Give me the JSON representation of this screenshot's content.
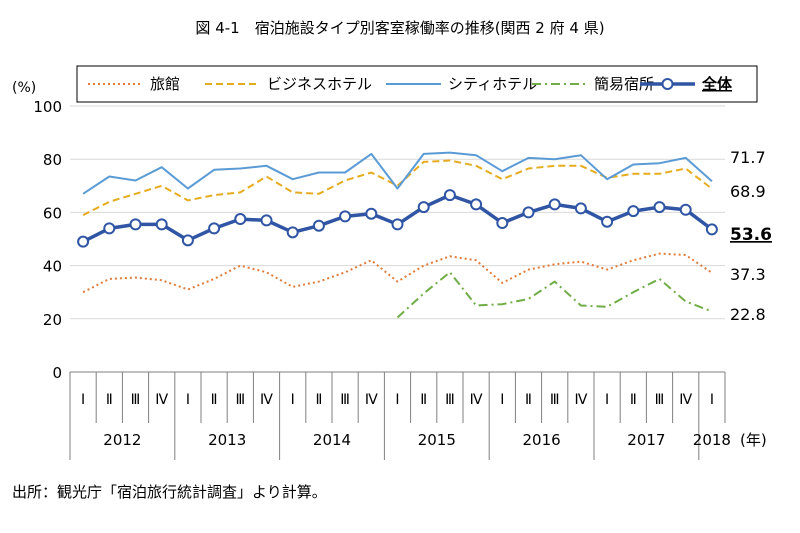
{
  "chart_data": {
    "type": "line",
    "title": "図 4-1　宿泊施設タイプ別客室稼働率の推移(関西 2 府 4 県)",
    "ylabel": "(%)",
    "year_unit": "(年)",
    "ylim": [
      0,
      100
    ],
    "yticks": [
      0,
      20,
      40,
      60,
      80,
      100
    ],
    "grid": true,
    "legend_position": "top",
    "quarters": [
      "Ⅰ",
      "Ⅱ",
      "Ⅲ",
      "Ⅳ",
      "Ⅰ",
      "Ⅱ",
      "Ⅲ",
      "Ⅳ",
      "Ⅰ",
      "Ⅱ",
      "Ⅲ",
      "Ⅳ",
      "Ⅰ",
      "Ⅱ",
      "Ⅲ",
      "Ⅳ",
      "Ⅰ",
      "Ⅱ",
      "Ⅲ",
      "Ⅳ",
      "Ⅰ",
      "Ⅱ",
      "Ⅲ",
      "Ⅳ",
      "Ⅰ"
    ],
    "years": [
      {
        "label": "2012",
        "quarters": 4
      },
      {
        "label": "2013",
        "quarters": 4
      },
      {
        "label": "2014",
        "quarters": 4
      },
      {
        "label": "2015",
        "quarters": 4
      },
      {
        "label": "2016",
        "quarters": 4
      },
      {
        "label": "2017",
        "quarters": 4
      },
      {
        "label": "2018",
        "quarters": 1
      }
    ],
    "series": [
      {
        "name": "旅館",
        "color": "#e07b39",
        "style": "dotted",
        "width": 2,
        "markers": false,
        "end_label": "37.3",
        "end_bold": false,
        "values": [
          30,
          35,
          35.5,
          34.5,
          31,
          35,
          40,
          37.5,
          32,
          34,
          37.5,
          42,
          34,
          40,
          43.5,
          42,
          33.5,
          38.5,
          40.5,
          41.5,
          38.5,
          42,
          44.5,
          44,
          37.3
        ]
      },
      {
        "name": "ビジネスホテル",
        "color": "#e6ac1f",
        "style": "dashed",
        "width": 2,
        "markers": false,
        "end_label": "68.9",
        "end_bold": false,
        "values": [
          59,
          64,
          67,
          70,
          64.5,
          66.5,
          67.5,
          73.5,
          67.5,
          67,
          72,
          75,
          70,
          79,
          79.5,
          77.5,
          72.5,
          76.5,
          77.5,
          77.5,
          73,
          74.5,
          74.5,
          76.5,
          68.9
        ]
      },
      {
        "name": "シティホテル",
        "color": "#5b9bd5",
        "style": "solid",
        "width": 2,
        "markers": false,
        "end_label": "71.7",
        "end_bold": false,
        "values": [
          67,
          73.5,
          72,
          77,
          69,
          76,
          76.5,
          77.5,
          72.5,
          75,
          75,
          82,
          69,
          82,
          82.5,
          81.5,
          75.5,
          80.5,
          80,
          81.5,
          72.5,
          78,
          78.5,
          80.5,
          71.7
        ]
      },
      {
        "name": "簡易宿所",
        "color": "#70ad47",
        "style": "dashdot",
        "width": 2,
        "markers": false,
        "end_label": "22.8",
        "end_bold": false,
        "values": [
          null,
          null,
          null,
          null,
          null,
          null,
          null,
          null,
          null,
          null,
          null,
          null,
          20.5,
          29.5,
          37.5,
          25,
          25.5,
          27.5,
          34,
          25,
          24.5,
          30,
          35,
          26.5,
          22.8
        ]
      },
      {
        "name": "全体",
        "color": "#2f55a4",
        "style": "solid",
        "width": 3.5,
        "markers": true,
        "end_label": "53.6",
        "end_bold": true,
        "values": [
          49,
          54,
          55.5,
          55.5,
          49.5,
          54,
          57.5,
          57,
          52.5,
          55,
          58.5,
          59.5,
          55.5,
          62,
          66.5,
          63,
          56,
          60,
          63,
          61.5,
          56.5,
          60.5,
          62,
          61,
          53.6
        ]
      }
    ]
  },
  "footer": {
    "source": "出所：観光庁「宿泊旅行統計調査」より計算。"
  }
}
